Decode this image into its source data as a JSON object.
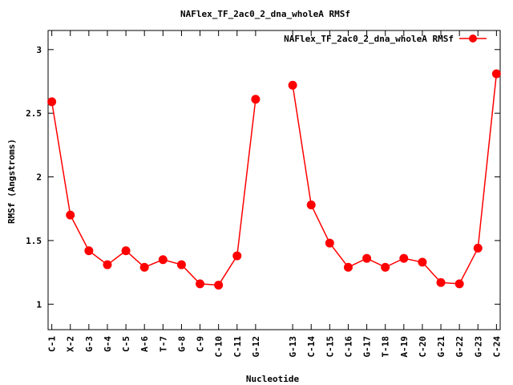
{
  "chart_data": {
    "type": "line",
    "title": "NAFlex_TF_2ac0_2_dna_wholeA RMSf",
    "xlabel": "Nucleotide",
    "ylabel": "RMSf (Angstroms)",
    "ylim": [
      0.8,
      3.15
    ],
    "yticks": [
      1,
      1.5,
      2,
      2.5,
      3
    ],
    "ytick_labels": [
      "1",
      "1.5",
      "2",
      "2.5",
      "3"
    ],
    "grid": false,
    "legend_position": "top-right",
    "xlim": [
      0.8,
      25.2
    ],
    "categories": [
      "C-1",
      "X-2",
      "G-3",
      "G-4",
      "C-5",
      "A-6",
      "T-7",
      "G-8",
      "C-9",
      "C-10",
      "C-11",
      "G-12",
      "G-13",
      "C-14",
      "C-15",
      "C-16",
      "G-17",
      "T-18",
      "A-19",
      "C-20",
      "G-21",
      "G-22",
      "G-23",
      "C-24"
    ],
    "x": [
      1,
      2,
      3,
      4,
      5,
      6,
      7,
      8,
      9,
      10,
      11,
      12,
      14,
      15,
      16,
      17,
      18,
      19,
      20,
      21,
      22,
      23,
      24,
      25
    ],
    "series": [
      {
        "name": "NAFlex_TF_2ac0_2_dna_wholeA RMSf",
        "color": "#ff0000",
        "segments": [
          [
            2.59,
            1.7,
            1.42,
            1.31,
            1.42,
            1.29,
            1.35,
            1.31,
            1.16,
            1.15,
            1.38,
            2.61
          ],
          [
            2.72,
            1.78,
            1.48,
            1.29,
            1.36,
            1.29,
            1.36,
            1.33,
            1.17,
            1.16,
            1.44,
            2.81
          ]
        ]
      }
    ]
  }
}
